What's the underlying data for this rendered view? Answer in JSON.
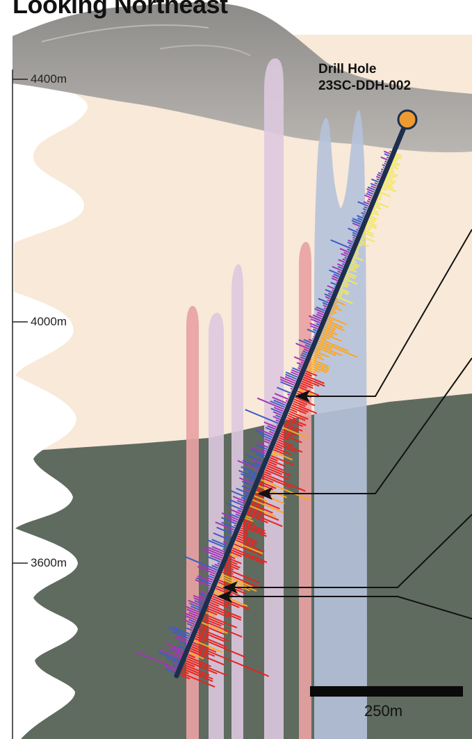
{
  "heading": "Looking Northeast",
  "elevation_labels": {
    "e4400": "4400m",
    "e4000": "4000m",
    "e3600": "3600m"
  },
  "drill_hole": {
    "title": "Drill Hole",
    "id": "23SC-DDH-002"
  },
  "scale_bar": {
    "label": "250m"
  },
  "colors": {
    "topography": "#8c8a88",
    "upper_unit": "#f8e9d8",
    "lower_unit": "#5f6b5f",
    "dike_pink": "#e8a2a3",
    "dike_lavender": "#ddc9df",
    "intrusion_blue": "#b5c2dc",
    "drill_trace": "#1d2f4c",
    "collar": "#ee9a32",
    "assay_left_high": "#e8231f",
    "assay_left_mid": "#ffa61a",
    "assay_left_low": "#f2e85a",
    "assay_right_blue": "#3f5cc4",
    "assay_right_purple": "#a036b6"
  }
}
